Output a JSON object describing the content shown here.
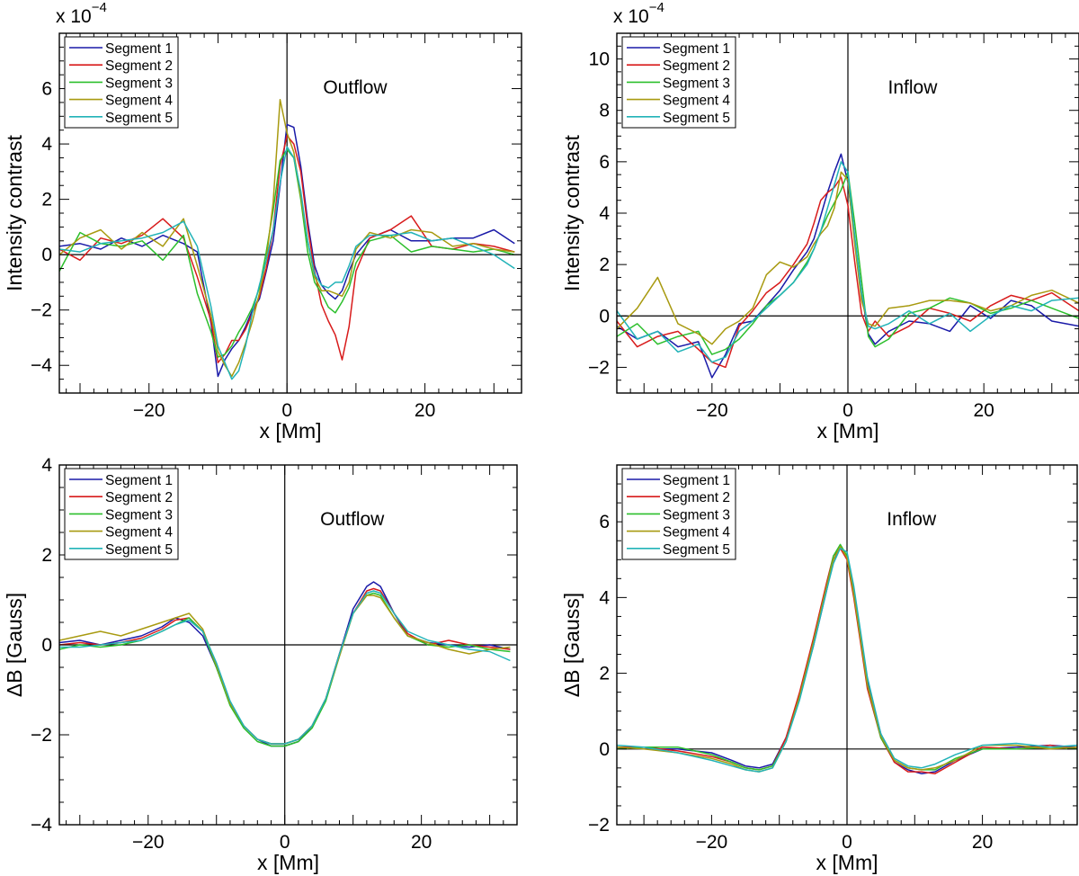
{
  "legend_labels": [
    "Segment 1",
    "Segment 2",
    "Segment 3",
    "Segment 4",
    "Segment 5"
  ],
  "series_colors": [
    "#1a1aa8",
    "#d81b1b",
    "#2cbf2c",
    "#a89a10",
    "#22b3b8"
  ],
  "chart_data": [
    {
      "id": "top-left",
      "type": "line",
      "title": "",
      "annotation": "Outflow",
      "xlabel": "x [Mm]",
      "ylabel": "Intensity contrast",
      "scale_label": "x 10",
      "scale_exp": "−4",
      "xlim": [
        -33,
        34
      ],
      "ylim": [
        -5,
        8
      ],
      "xticks": [
        -20,
        0,
        20
      ],
      "xtick_labels": [
        "−20",
        "0",
        "20"
      ],
      "yticks": [
        -4,
        -2,
        0,
        2,
        4,
        6
      ],
      "ytick_labels": [
        "−4",
        "−2",
        "0",
        "2",
        "4",
        "6"
      ],
      "x": [
        -33,
        -30,
        -27,
        -24,
        -21,
        -18,
        -15,
        -13,
        -11,
        -10,
        -9,
        -8,
        -7,
        -6,
        -5,
        -4,
        -3,
        -2,
        -1,
        0,
        1,
        2,
        3,
        4,
        5,
        6,
        7,
        8,
        9,
        10,
        12,
        15,
        18,
        21,
        24,
        27,
        30,
        33
      ],
      "series": [
        {
          "name": "Segment 1",
          "values": [
            0.3,
            0.4,
            0.2,
            0.6,
            0.3,
            0.7,
            0.4,
            0.1,
            -2.5,
            -4.4,
            -3.8,
            -3.4,
            -3.1,
            -2.6,
            -2.0,
            -1.6,
            -0.6,
            0.5,
            2.5,
            4.7,
            4.6,
            3.2,
            1.2,
            -0.4,
            -1.1,
            -1.4,
            -1.6,
            -1.3,
            -0.6,
            0.0,
            0.6,
            0.9,
            0.5,
            0.5,
            0.6,
            0.6,
            0.9,
            0.4
          ]
        },
        {
          "name": "Segment 2",
          "values": [
            0.2,
            -0.2,
            0.6,
            0.4,
            0.7,
            1.3,
            0.6,
            -0.8,
            -2.4,
            -3.9,
            -3.6,
            -3.1,
            -3.1,
            -2.7,
            -2.1,
            -1.5,
            -0.5,
            0.9,
            3.2,
            4.3,
            4.0,
            3.0,
            1.0,
            -0.6,
            -1.8,
            -2.4,
            -2.9,
            -3.8,
            -2.6,
            -0.6,
            0.6,
            0.9,
            1.4,
            0.3,
            0.2,
            0.4,
            0.3,
            0.1
          ]
        },
        {
          "name": "Segment 3",
          "values": [
            -0.6,
            0.8,
            0.4,
            0.3,
            0.5,
            -0.2,
            0.7,
            -1.4,
            -2.8,
            -3.7,
            -3.6,
            -3.3,
            -2.8,
            -2.4,
            -1.9,
            -1.2,
            0.1,
            1.6,
            3.4,
            3.8,
            3.5,
            2.0,
            0.1,
            -1.0,
            -1.4,
            -1.9,
            -2.1,
            -1.7,
            -1.2,
            -0.3,
            0.5,
            0.7,
            0.1,
            0.3,
            0.2,
            0.1,
            0.2,
            0.0
          ]
        },
        {
          "name": "Segment 4",
          "values": [
            0.0,
            0.6,
            0.9,
            0.2,
            0.8,
            0.3,
            1.3,
            -0.4,
            -2.2,
            -3.5,
            -4.0,
            -4.4,
            -3.9,
            -3.2,
            -2.4,
            -1.4,
            -0.2,
            1.9,
            5.6,
            4.4,
            3.7,
            2.1,
            0.5,
            -0.8,
            -1.3,
            -1.3,
            -1.4,
            -1.5,
            -1.0,
            0.2,
            0.8,
            0.6,
            0.9,
            0.8,
            0.3,
            0.4,
            0.2,
            0.1
          ]
        },
        {
          "name": "Segment 5",
          "values": [
            0.2,
            0.1,
            0.4,
            0.5,
            0.6,
            0.8,
            1.2,
            0.3,
            -1.9,
            -3.3,
            -3.9,
            -4.5,
            -4.2,
            -3.3,
            -2.1,
            -1.1,
            -0.2,
            0.9,
            2.6,
            3.9,
            3.5,
            2.3,
            0.5,
            -0.7,
            -1.1,
            -1.2,
            -1.0,
            -1.0,
            -0.4,
            0.3,
            0.7,
            0.7,
            0.8,
            0.5,
            0.6,
            0.3,
            0.0,
            -0.5
          ]
        }
      ]
    },
    {
      "id": "top-right",
      "type": "line",
      "title": "",
      "annotation": "Inflow",
      "xlabel": "x [Mm]",
      "ylabel": "Intensity contrast",
      "scale_label": "x 10",
      "scale_exp": "−4",
      "xlim": [
        -34,
        34
      ],
      "ylim": [
        -3,
        11
      ],
      "xticks": [
        -20,
        0,
        20
      ],
      "xtick_labels": [
        "−20",
        "0",
        "20"
      ],
      "yticks": [
        -2,
        0,
        2,
        4,
        6,
        8,
        10
      ],
      "ytick_labels": [
        "−2",
        "0",
        "2",
        "4",
        "6",
        "8",
        "10"
      ],
      "x": [
        -34,
        -31,
        -28,
        -25,
        -22,
        -20,
        -18,
        -16,
        -14,
        -12,
        -10,
        -8,
        -6,
        -5,
        -4,
        -3,
        -2,
        -1,
        0,
        1,
        2,
        3,
        4,
        6,
        9,
        12,
        15,
        18,
        21,
        24,
        27,
        30,
        34
      ],
      "series": [
        {
          "name": "Segment 1",
          "values": [
            -0.4,
            -0.9,
            -0.6,
            -1.2,
            -1.0,
            -2.4,
            -1.5,
            -0.3,
            -0.2,
            0.4,
            1.0,
            1.8,
            2.5,
            3.0,
            3.9,
            4.8,
            5.6,
            6.3,
            5.2,
            3.0,
            0.9,
            -0.7,
            -1.1,
            -0.6,
            -0.2,
            -0.3,
            -0.6,
            0.4,
            -0.1,
            0.6,
            0.4,
            -0.2,
            -0.4
          ]
        },
        {
          "name": "Segment 2",
          "values": [
            -0.2,
            -1.2,
            -0.8,
            -0.6,
            -1.3,
            -1.8,
            -2.0,
            -0.4,
            0.2,
            0.9,
            1.3,
            2.0,
            2.8,
            3.6,
            4.5,
            4.8,
            5.0,
            5.4,
            4.3,
            2.1,
            0.1,
            -0.6,
            -0.2,
            -0.8,
            -0.4,
            0.3,
            0.1,
            -0.2,
            0.4,
            0.8,
            0.6,
            0.9,
            0.2
          ]
        },
        {
          "name": "Segment 3",
          "values": [
            -0.8,
            -0.3,
            -1.1,
            -0.8,
            -0.6,
            -1.5,
            -1.3,
            -0.9,
            -0.3,
            0.4,
            0.8,
            1.3,
            2.1,
            2.6,
            3.3,
            3.9,
            4.4,
            4.9,
            5.6,
            3.6,
            1.4,
            -0.8,
            -1.2,
            -0.9,
            0.1,
            0.3,
            0.7,
            0.5,
            0.1,
            0.3,
            0.6,
            0.3,
            -0.1
          ]
        },
        {
          "name": "Segment 4",
          "values": [
            -0.5,
            0.3,
            1.5,
            -0.3,
            -0.7,
            -1.1,
            -0.5,
            -0.2,
            0.3,
            1.6,
            2.1,
            1.9,
            2.3,
            2.8,
            3.2,
            3.5,
            4.2,
            5.6,
            5.3,
            2.8,
            0.6,
            -0.3,
            -0.4,
            0.3,
            0.4,
            0.6,
            0.6,
            0.5,
            0.2,
            0.4,
            0.8,
            1.0,
            0.5
          ]
        },
        {
          "name": "Segment 5",
          "values": [
            0.2,
            -0.9,
            -0.6,
            -1.4,
            -1.1,
            -1.8,
            -1.6,
            -0.6,
            -0.2,
            0.3,
            0.8,
            1.3,
            2.0,
            2.6,
            3.3,
            4.2,
            5.1,
            6.0,
            5.6,
            3.1,
            0.9,
            -0.4,
            -0.5,
            -0.3,
            0.2,
            -0.3,
            0.1,
            -0.6,
            0.0,
            0.4,
            0.2,
            0.6,
            0.7
          ]
        }
      ]
    },
    {
      "id": "bottom-left",
      "type": "line",
      "title": "",
      "annotation": "Outflow",
      "xlabel": "x [Mm]",
      "ylabel": "ΔB [Gauss]",
      "xlim": [
        -33,
        34
      ],
      "ylim": [
        -4,
        4
      ],
      "xticks": [
        -20,
        0,
        20
      ],
      "xtick_labels": [
        "−20",
        "0",
        "20"
      ],
      "yticks": [
        -4,
        -2,
        0,
        2,
        4
      ],
      "ytick_labels": [
        "−4",
        "−2",
        "0",
        "2",
        "4"
      ],
      "x": [
        -33,
        -30,
        -27,
        -24,
        -21,
        -18,
        -16,
        -14,
        -12,
        -10,
        -8,
        -6,
        -4,
        -2,
        0,
        2,
        4,
        6,
        8,
        10,
        12,
        13,
        14,
        16,
        18,
        21,
        24,
        27,
        30,
        33
      ],
      "series": [
        {
          "name": "Segment 1",
          "values": [
            0.05,
            0.1,
            0.0,
            0.1,
            0.2,
            0.4,
            0.6,
            0.5,
            0.2,
            -0.5,
            -1.3,
            -1.8,
            -2.1,
            -2.25,
            -2.25,
            -2.15,
            -1.8,
            -1.2,
            -0.2,
            0.8,
            1.3,
            1.4,
            1.3,
            0.7,
            0.2,
            0.05,
            0.0,
            -0.05,
            0.0,
            -0.1
          ]
        },
        {
          "name": "Segment 2",
          "values": [
            0.0,
            0.05,
            0.0,
            0.05,
            0.15,
            0.35,
            0.55,
            0.6,
            0.3,
            -0.5,
            -1.3,
            -1.8,
            -2.1,
            -2.2,
            -2.2,
            -2.1,
            -1.8,
            -1.2,
            -0.2,
            0.7,
            1.2,
            1.25,
            1.2,
            0.7,
            0.25,
            0.0,
            0.1,
            0.0,
            -0.05,
            -0.1
          ]
        },
        {
          "name": "Segment 3",
          "values": [
            -0.1,
            0.0,
            -0.05,
            0.0,
            0.1,
            0.3,
            0.45,
            0.6,
            0.3,
            -0.5,
            -1.35,
            -1.85,
            -2.15,
            -2.25,
            -2.25,
            -2.15,
            -1.85,
            -1.25,
            -0.25,
            0.7,
            1.1,
            1.15,
            1.1,
            0.6,
            0.2,
            0.0,
            -0.05,
            0.0,
            -0.1,
            -0.15
          ]
        },
        {
          "name": "Segment 4",
          "values": [
            0.1,
            0.2,
            0.3,
            0.2,
            0.35,
            0.5,
            0.6,
            0.7,
            0.35,
            -0.45,
            -1.3,
            -1.8,
            -2.1,
            -2.2,
            -2.2,
            -2.1,
            -1.8,
            -1.2,
            -0.25,
            0.7,
            1.1,
            1.1,
            1.05,
            0.6,
            0.2,
            0.05,
            -0.1,
            -0.2,
            -0.1,
            -0.05
          ]
        },
        {
          "name": "Segment 5",
          "values": [
            -0.05,
            -0.05,
            0.0,
            0.05,
            0.1,
            0.3,
            0.45,
            0.55,
            0.3,
            -0.4,
            -1.25,
            -1.8,
            -2.1,
            -2.2,
            -2.2,
            -2.1,
            -1.8,
            -1.2,
            -0.2,
            0.7,
            1.15,
            1.2,
            1.15,
            0.7,
            0.3,
            0.1,
            0.0,
            -0.1,
            -0.15,
            -0.35
          ]
        }
      ]
    },
    {
      "id": "bottom-right",
      "type": "line",
      "title": "",
      "annotation": "Inflow",
      "xlabel": "x [Mm]",
      "ylabel": "ΔB [Gauss]",
      "xlim": [
        -34,
        34
      ],
      "ylim": [
        -2,
        7.5
      ],
      "xticks": [
        -20,
        0,
        20
      ],
      "xtick_labels": [
        "−20",
        "0",
        "20"
      ],
      "yticks": [
        -2,
        0,
        2,
        4,
        6
      ],
      "ytick_labels": [
        "−2",
        "0",
        "2",
        "4",
        "6"
      ],
      "x": [
        -34,
        -30,
        -25,
        -20,
        -17,
        -15,
        -13,
        -11,
        -9,
        -7,
        -5,
        -3,
        -2,
        -1,
        0,
        1,
        2,
        3,
        5,
        7,
        9,
        11,
        13,
        16,
        20,
        25,
        30,
        34
      ],
      "series": [
        {
          "name": "Segment 1",
          "values": [
            0.05,
            0.0,
            0.0,
            -0.1,
            -0.3,
            -0.45,
            -0.5,
            -0.4,
            0.3,
            1.4,
            2.7,
            4.2,
            5.0,
            5.3,
            5.1,
            4.2,
            3.0,
            1.8,
            0.4,
            -0.35,
            -0.55,
            -0.65,
            -0.6,
            -0.3,
            0.0,
            0.05,
            0.1,
            0.05
          ]
        },
        {
          "name": "Segment 2",
          "values": [
            0.05,
            0.05,
            -0.05,
            -0.2,
            -0.35,
            -0.5,
            -0.55,
            -0.45,
            0.3,
            1.5,
            2.9,
            4.4,
            5.1,
            5.3,
            5.0,
            4.0,
            2.8,
            1.6,
            0.3,
            -0.35,
            -0.6,
            -0.6,
            -0.65,
            -0.35,
            0.05,
            0.0,
            0.1,
            0.0
          ]
        },
        {
          "name": "Segment 3",
          "values": [
            0.0,
            0.05,
            0.05,
            -0.15,
            -0.35,
            -0.5,
            -0.55,
            -0.45,
            0.2,
            1.4,
            2.8,
            4.3,
            5.1,
            5.4,
            5.1,
            4.1,
            2.9,
            1.7,
            0.3,
            -0.3,
            -0.5,
            -0.55,
            -0.55,
            -0.25,
            0.0,
            0.0,
            0.05,
            0.0
          ]
        },
        {
          "name": "Segment 4",
          "values": [
            0.05,
            0.0,
            -0.1,
            -0.25,
            -0.4,
            -0.55,
            -0.6,
            -0.5,
            0.2,
            1.4,
            2.8,
            4.3,
            5.0,
            5.35,
            5.05,
            4.1,
            2.9,
            1.7,
            0.35,
            -0.3,
            -0.5,
            -0.55,
            -0.5,
            -0.3,
            0.1,
            0.1,
            0.0,
            0.05
          ]
        },
        {
          "name": "Segment 5",
          "values": [
            0.1,
            0.05,
            -0.1,
            -0.3,
            -0.45,
            -0.55,
            -0.6,
            -0.5,
            0.2,
            1.3,
            2.7,
            4.2,
            4.9,
            5.3,
            5.2,
            4.3,
            3.1,
            1.9,
            0.4,
            -0.25,
            -0.45,
            -0.5,
            -0.4,
            -0.15,
            0.1,
            0.15,
            0.05,
            0.1
          ]
        }
      ]
    }
  ]
}
